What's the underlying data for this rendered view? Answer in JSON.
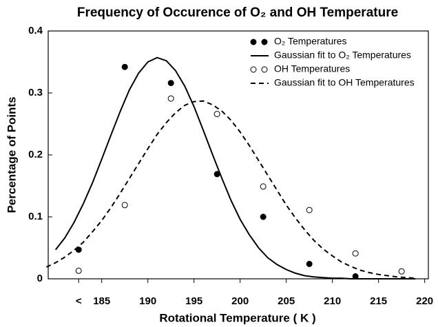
{
  "chart_data": {
    "type": "line",
    "title": "Frequency of Occurence of O₂ and OH Temperature",
    "x_label": "Rotational Temperature ( K )",
    "y_label": "Percentage of Points",
    "xlim": [
      179.2,
      220.4
    ],
    "ylim": [
      0,
      0.4
    ],
    "xticks": [
      {
        "value": 182.5,
        "label": "<"
      },
      185,
      190,
      195,
      200,
      205,
      210,
      215,
      220
    ],
    "yticks": [
      0,
      0.1,
      0.2,
      0.3,
      0.4
    ],
    "legend": "upper right",
    "series": [
      {
        "name": "O₂ Temperatures",
        "type": "scatter",
        "marker": "filled",
        "color": "#000000",
        "x": [
          182.5,
          187.5,
          192.5,
          197.5,
          202.5,
          207.5,
          212.5
        ],
        "values": [
          0.047,
          0.342,
          0.316,
          0.169,
          0.1,
          0.024,
          0.004
        ]
      },
      {
        "name": "Gaussian fit to O₂ Temperatures",
        "type": "line",
        "dash": "solid",
        "color": "#000000",
        "x": [
          180,
          181,
          182,
          183,
          184,
          185,
          186,
          187,
          188,
          189,
          190,
          191,
          192,
          193,
          194,
          195,
          196,
          197,
          198,
          199,
          200,
          201,
          202,
          203,
          204,
          205,
          206,
          207,
          208,
          209,
          210,
          211,
          212,
          213,
          214,
          215,
          216,
          217,
          218,
          219
        ],
        "values": [
          0.047,
          0.066,
          0.091,
          0.121,
          0.155,
          0.193,
          0.232,
          0.27,
          0.305,
          0.332,
          0.35,
          0.357,
          0.352,
          0.336,
          0.311,
          0.278,
          0.24,
          0.201,
          0.163,
          0.127,
          0.096,
          0.071,
          0.05,
          0.034,
          0.023,
          0.015,
          0.009,
          0.005,
          0.003,
          0.002,
          0.001,
          0.001,
          0,
          0,
          0,
          0,
          0,
          0,
          0,
          0
        ]
      },
      {
        "name": "OH Temperatures",
        "type": "scatter",
        "marker": "open",
        "color": "#000000",
        "x": [
          182.5,
          187.5,
          192.5,
          197.5,
          202.5,
          207.5,
          212.5,
          217.5
        ],
        "values": [
          0.013,
          0.119,
          0.291,
          0.266,
          0.149,
          0.111,
          0.041,
          0.012
        ]
      },
      {
        "name": "Gaussian fit to OH Temperatures",
        "type": "line",
        "dash": "dashed",
        "color": "#000000",
        "x": [
          179,
          180,
          181,
          182,
          183,
          184,
          185,
          186,
          187,
          188,
          189,
          190,
          191,
          192,
          193,
          194,
          195,
          196,
          197,
          198,
          199,
          200,
          201,
          202,
          203,
          204,
          205,
          206,
          207,
          208,
          209,
          210,
          211,
          212,
          213,
          214,
          215,
          216,
          217,
          218,
          219
        ],
        "values": [
          0.019,
          0.026,
          0.035,
          0.046,
          0.059,
          0.076,
          0.094,
          0.115,
          0.138,
          0.162,
          0.186,
          0.21,
          0.233,
          0.252,
          0.268,
          0.28,
          0.286,
          0.287,
          0.281,
          0.271,
          0.256,
          0.237,
          0.215,
          0.191,
          0.167,
          0.143,
          0.119,
          0.098,
          0.079,
          0.062,
          0.048,
          0.037,
          0.027,
          0.02,
          0.014,
          0.01,
          0.007,
          0.005,
          0.003,
          0.002,
          0.001
        ]
      }
    ]
  }
}
